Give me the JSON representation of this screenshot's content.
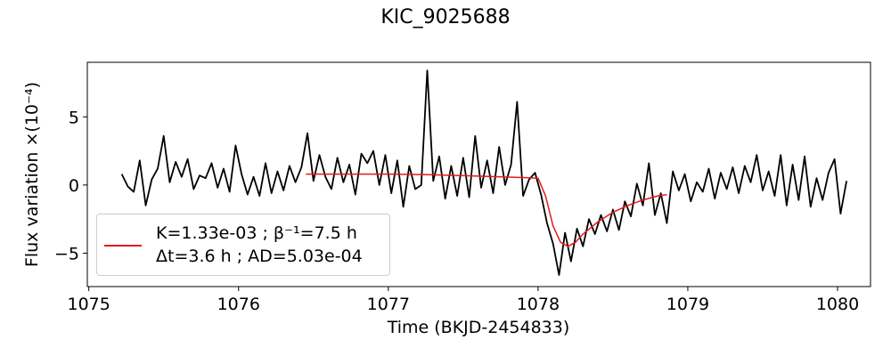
{
  "chart_data": {
    "type": "line",
    "title": "KIC_9025688",
    "xlabel": "Time (BKJD-2454833)",
    "ylabel": "Flux variation ×(10⁻⁴)",
    "xlim": [
      1074.99,
      1080.22
    ],
    "ylim": [
      -7.45,
      9.0
    ],
    "xticks": [
      1075,
      1076,
      1077,
      1078,
      1079,
      1080
    ],
    "yticks": [
      {
        "value": -5,
        "label": "−5"
      },
      0,
      5
    ],
    "legend": "lower left",
    "series": [
      {
        "color": "#000000",
        "x": [
          1075.22,
          1075.26,
          1075.3,
          1075.34,
          1075.38,
          1075.42,
          1075.46,
          1075.5,
          1075.54,
          1075.58,
          1075.62,
          1075.66,
          1075.7,
          1075.74,
          1075.78,
          1075.82,
          1075.86,
          1075.9,
          1075.94,
          1075.98,
          1076.02,
          1076.06,
          1076.1,
          1076.14,
          1076.18,
          1076.22,
          1076.26,
          1076.3,
          1076.34,
          1076.38,
          1076.42,
          1076.46,
          1076.5,
          1076.54,
          1076.58,
          1076.62,
          1076.66,
          1076.7,
          1076.74,
          1076.78,
          1076.82,
          1076.86,
          1076.9,
          1076.94,
          1076.98,
          1077.02,
          1077.06,
          1077.1,
          1077.14,
          1077.18,
          1077.22,
          1077.26,
          1077.3,
          1077.34,
          1077.38,
          1077.42,
          1077.46,
          1077.5,
          1077.54,
          1077.58,
          1077.62,
          1077.66,
          1077.7,
          1077.74,
          1077.78,
          1077.82,
          1077.86,
          1077.9,
          1077.94,
          1077.98,
          1078.02,
          1078.06,
          1078.1,
          1078.14,
          1078.18,
          1078.22,
          1078.26,
          1078.3,
          1078.34,
          1078.38,
          1078.42,
          1078.46,
          1078.5,
          1078.54,
          1078.58,
          1078.62,
          1078.66,
          1078.7,
          1078.74,
          1078.78,
          1078.82,
          1078.86,
          1078.9,
          1078.94,
          1078.98,
          1079.02,
          1079.06,
          1079.1,
          1079.14,
          1079.18,
          1079.22,
          1079.26,
          1079.3,
          1079.34,
          1079.38,
          1079.42,
          1079.46,
          1079.5,
          1079.54,
          1079.58,
          1079.62,
          1079.66,
          1079.7,
          1079.74,
          1079.78,
          1079.82,
          1079.86,
          1079.9,
          1079.94,
          1079.98,
          1080.02,
          1080.06
        ],
        "values": [
          0.8,
          -0.1,
          -0.5,
          1.8,
          -1.5,
          0.4,
          1.2,
          3.6,
          0.2,
          1.7,
          0.6,
          1.9,
          -0.3,
          0.7,
          0.5,
          1.6,
          -0.2,
          1.2,
          -0.5,
          2.9,
          0.8,
          -0.7,
          0.6,
          -0.8,
          1.6,
          -0.6,
          1.0,
          -0.4,
          1.4,
          0.2,
          1.3,
          3.8,
          0.3,
          2.2,
          0.6,
          -0.3,
          2.0,
          0.2,
          1.5,
          -0.7,
          2.3,
          1.6,
          2.5,
          0.0,
          2.2,
          -0.6,
          1.8,
          -1.6,
          1.4,
          -0.3,
          0.0,
          8.4,
          0.3,
          2.1,
          -1.0,
          1.4,
          -0.8,
          2.0,
          -0.9,
          3.6,
          -0.2,
          1.8,
          -0.6,
          2.8,
          0.0,
          1.5,
          6.1,
          -0.8,
          0.4,
          0.9,
          -0.7,
          -2.8,
          -4.3,
          -6.6,
          -3.5,
          -5.6,
          -3.2,
          -4.5,
          -2.5,
          -3.6,
          -2.2,
          -3.4,
          -1.8,
          -3.3,
          -1.2,
          -2.3,
          0.1,
          -1.5,
          1.6,
          -2.2,
          -0.6,
          -2.8,
          1.0,
          -0.4,
          0.8,
          -1.2,
          0.2,
          -0.5,
          1.2,
          -1.0,
          0.9,
          -0.3,
          1.3,
          -0.6,
          1.4,
          0.2,
          2.2,
          -0.4,
          1.0,
          -0.8,
          2.2,
          -1.5,
          1.5,
          -1.1,
          2.1,
          -1.6,
          0.5,
          -1.1,
          0.9,
          1.9,
          -2.1,
          0.3
        ]
      },
      {
        "name": "K=1.33e-03 ; β⁻¹=7.5 h\nΔt=3.6 h ; AD=5.03e-04",
        "color": "#e31a1c",
        "x": [
          1076.45,
          1076.7,
          1077.0,
          1077.3,
          1077.6,
          1077.9,
          1078.0,
          1078.05,
          1078.1,
          1078.15,
          1078.2,
          1078.25,
          1078.3,
          1078.4,
          1078.5,
          1078.6,
          1078.7,
          1078.8,
          1078.86
        ],
        "values": [
          0.8,
          0.8,
          0.8,
          0.75,
          0.65,
          0.55,
          0.5,
          -0.8,
          -3.0,
          -4.2,
          -4.5,
          -4.2,
          -3.6,
          -2.7,
          -2.0,
          -1.5,
          -1.1,
          -0.8,
          -0.7
        ]
      }
    ]
  }
}
